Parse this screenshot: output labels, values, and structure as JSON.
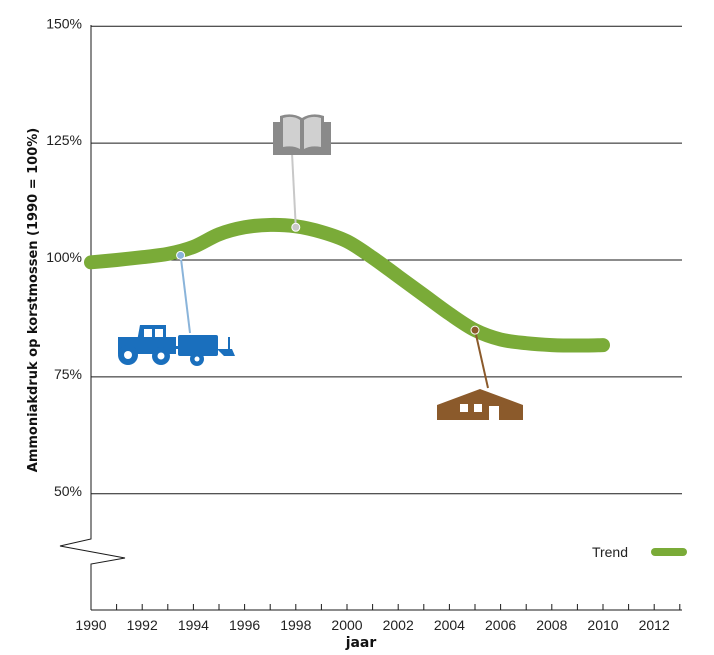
{
  "chart_data": {
    "type": "line",
    "title": "",
    "xlabel": "jaar",
    "ylabel": "Ammoniakdruk op korstmossen (1990 = 100%)",
    "xlim": [
      1990,
      2013
    ],
    "ylim": [
      30,
      150
    ],
    "x_ticks": [
      1990,
      1991,
      1992,
      1993,
      1994,
      1995,
      1996,
      1997,
      1998,
      1999,
      2000,
      2001,
      2002,
      2003,
      2004,
      2005,
      2006,
      2007,
      2008,
      2009,
      2010,
      2011,
      2012,
      2013
    ],
    "x_tick_labels": [
      "1990",
      "1992",
      "1994",
      "1996",
      "1998",
      "2000",
      "2002",
      "2004",
      "2006",
      "2008",
      "2010",
      "2012"
    ],
    "y_tick_labels": [
      "50%",
      "75%",
      "100%",
      "125%",
      "150%"
    ],
    "grid": "horizontal",
    "legend_position": "bottom-right",
    "series": [
      {
        "name": "Trend",
        "color": "#7aab38",
        "x": [
          1990,
          1991,
          1992,
          1993,
          1994,
          1995,
          1996,
          1997,
          1998,
          1999,
          2000,
          2001,
          2002,
          2003,
          2004,
          2005,
          2006,
          2007,
          2008,
          2009,
          2010
        ],
        "y": [
          99.5,
          100,
          100.6,
          101.3,
          102.8,
          105.5,
          107,
          107.5,
          107.2,
          106,
          104,
          100.5,
          96.5,
          92.5,
          88.5,
          85,
          83,
          82.2,
          81.8,
          81.7,
          81.8
        ]
      }
    ],
    "annotations": [
      {
        "icon": "tractor-icon",
        "x": 1993.5,
        "y": 101,
        "color": "#1a6fbd"
      },
      {
        "icon": "book-icon",
        "x": 1998,
        "y": 107,
        "color": "#8a8a8a"
      },
      {
        "icon": "farm-building-icon",
        "x": 2005,
        "y": 85,
        "color": "#8b5a2b"
      }
    ]
  }
}
